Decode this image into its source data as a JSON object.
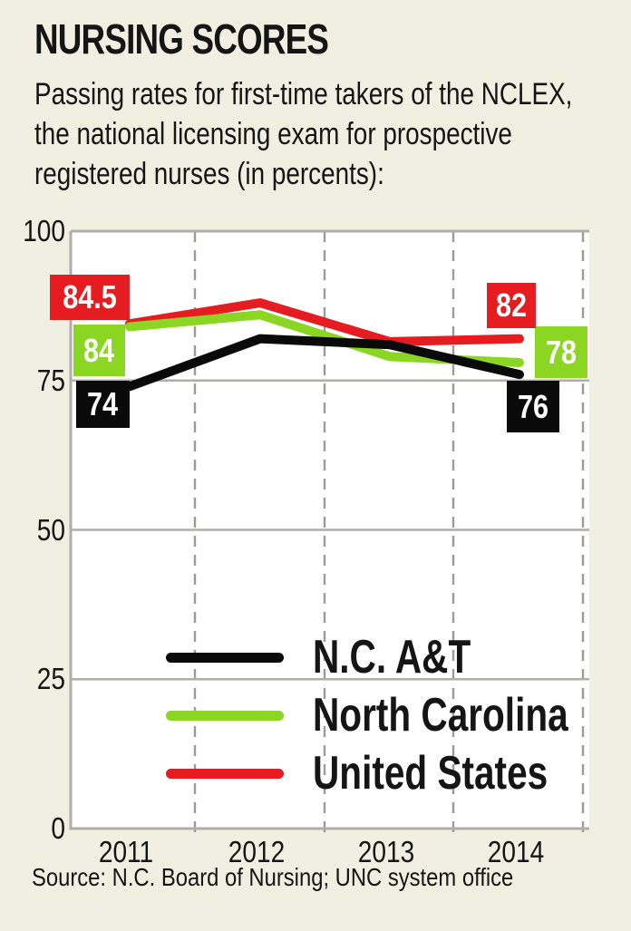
{
  "header": {
    "title": "NURSING SCORES",
    "subtitle_lines": [
      "Passing rates for first-time takers of the NCLEX,",
      "the national licensing exam for prospective",
      "registered nurses (in percents):"
    ]
  },
  "source": "Source: N.C. Board of Nursing; UNC system office",
  "colors": {
    "background": "#f1efe2",
    "plot_background": "#ffffff",
    "grid": "#b0aeaa",
    "dash_grid": "#9c9b97",
    "value_label_text": "#ffffff"
  },
  "chart_data": {
    "type": "line",
    "title": "NURSING SCORES",
    "categories": [
      "2011",
      "2012",
      "2013",
      "2014"
    ],
    "ylim": [
      0,
      100
    ],
    "yticks": [
      100,
      75,
      50,
      25,
      0
    ],
    "grid": "horizontal solid gray, vertical dashed gray between years",
    "legend_position": "inside lower-center",
    "series": [
      {
        "name": "N.C. A&T",
        "color": "#0a0a0a",
        "values": [
          74,
          82,
          81,
          76
        ],
        "point_labels": [
          {
            "index": 0,
            "text": "74"
          },
          {
            "index": 3,
            "text": "76"
          }
        ]
      },
      {
        "name": "North Carolina",
        "color": "#8bd622",
        "values": [
          84,
          86,
          79,
          78
        ],
        "point_labels": [
          {
            "index": 0,
            "text": "84"
          },
          {
            "index": 3,
            "text": "78"
          }
        ]
      },
      {
        "name": "United States",
        "color": "#e51c20",
        "values": [
          84.5,
          88,
          81.5,
          82
        ],
        "point_labels": [
          {
            "index": 0,
            "text": "84.5"
          },
          {
            "index": 3,
            "text": "82"
          }
        ]
      }
    ],
    "source": "Source: N.C. Board of Nursing; UNC system office"
  }
}
